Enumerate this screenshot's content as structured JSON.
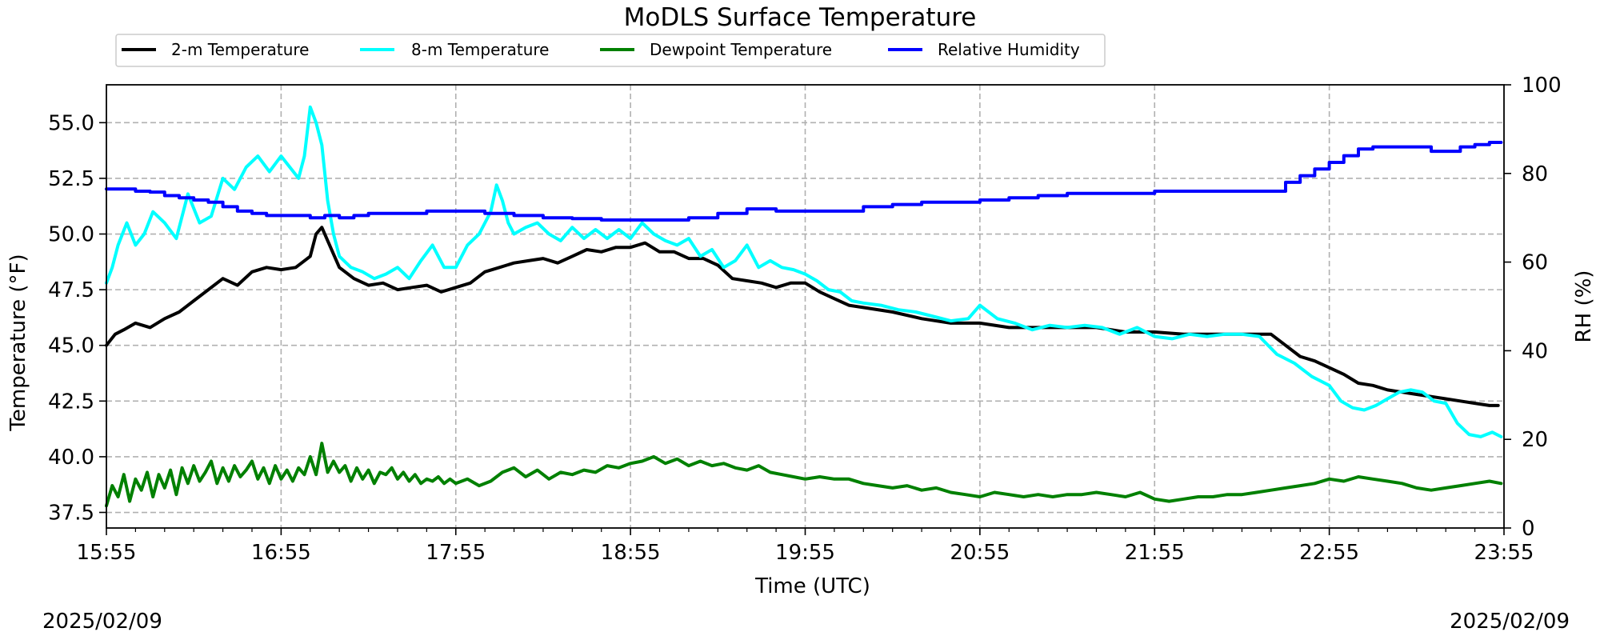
{
  "chart_data": {
    "type": "line",
    "title": "MoDLS Surface Temperature",
    "xlabel": "Time (UTC)",
    "ylabel": "Temperature ($^\\circ$F)",
    "ylabel_display": "Temperature (°F)",
    "y2label": "RH (%)",
    "date_left": "2025/02/09",
    "date_right": "2025/02/09",
    "xlim_minutes": [
      0,
      480
    ],
    "xticks": [
      {
        "m": 0,
        "label": "15:55"
      },
      {
        "m": 60,
        "label": "16:55"
      },
      {
        "m": 120,
        "label": "17:55"
      },
      {
        "m": 180,
        "label": "18:55"
      },
      {
        "m": 240,
        "label": "19:55"
      },
      {
        "m": 300,
        "label": "20:55"
      },
      {
        "m": 360,
        "label": "21:55"
      },
      {
        "m": 420,
        "label": "22:55"
      },
      {
        "m": 480,
        "label": "23:55"
      }
    ],
    "ylim": [
      36.8,
      56.7
    ],
    "yticks": [
      "37.5",
      "40.0",
      "42.5",
      "45.0",
      "47.5",
      "50.0",
      "52.5",
      "55.0"
    ],
    "y2lim": [
      0,
      100
    ],
    "y2ticks": [
      "0",
      "20",
      "40",
      "60",
      "80",
      "100"
    ],
    "grid": true,
    "legend_position": "top-left, above plot",
    "series": [
      {
        "name": "2-m Temperature",
        "color": "#000000",
        "axis": "left",
        "x": [
          0,
          3,
          6,
          10,
          15,
          20,
          25,
          30,
          35,
          40,
          45,
          50,
          55,
          60,
          65,
          70,
          72,
          74,
          76,
          80,
          85,
          90,
          95,
          100,
          105,
          110,
          115,
          120,
          125,
          130,
          135,
          140,
          145,
          150,
          155,
          160,
          165,
          170,
          175,
          180,
          185,
          190,
          195,
          200,
          205,
          210,
          215,
          220,
          225,
          230,
          235,
          240,
          245,
          250,
          255,
          260,
          270,
          280,
          290,
          300,
          310,
          320,
          330,
          340,
          350,
          360,
          370,
          380,
          390,
          400,
          405,
          410,
          415,
          420,
          425,
          430,
          435,
          440,
          445,
          450,
          455,
          460,
          465,
          470,
          475,
          478
        ],
        "y": [
          45.0,
          45.5,
          45.7,
          46.0,
          45.8,
          46.2,
          46.5,
          47.0,
          47.5,
          48.0,
          47.7,
          48.3,
          48.5,
          48.4,
          48.5,
          49.0,
          50.0,
          50.3,
          49.7,
          48.5,
          48.0,
          47.7,
          47.8,
          47.5,
          47.6,
          47.7,
          47.4,
          47.6,
          47.8,
          48.3,
          48.5,
          48.7,
          48.8,
          48.9,
          48.7,
          49.0,
          49.3,
          49.2,
          49.4,
          49.4,
          49.6,
          49.2,
          49.2,
          48.9,
          48.9,
          48.6,
          48.0,
          47.9,
          47.8,
          47.6,
          47.8,
          47.8,
          47.4,
          47.1,
          46.8,
          46.7,
          46.5,
          46.2,
          46.0,
          46.0,
          45.8,
          45.8,
          45.8,
          45.8,
          45.6,
          45.6,
          45.5,
          45.5,
          45.5,
          45.5,
          45.0,
          44.5,
          44.3,
          44.0,
          43.7,
          43.3,
          43.2,
          43.0,
          42.9,
          42.8,
          42.7,
          42.6,
          42.5,
          42.4,
          42.3,
          42.3
        ]
      },
      {
        "name": "8-m Temperature",
        "color": "#00ffff",
        "axis": "left",
        "x": [
          0,
          2,
          4,
          7,
          10,
          13,
          16,
          20,
          24,
          28,
          32,
          36,
          40,
          44,
          48,
          52,
          56,
          60,
          63,
          66,
          68,
          70,
          72,
          74,
          76,
          78,
          80,
          84,
          88,
          92,
          96,
          100,
          104,
          108,
          112,
          116,
          120,
          124,
          128,
          132,
          134,
          136,
          138,
          140,
          144,
          148,
          152,
          156,
          160,
          164,
          168,
          172,
          176,
          180,
          184,
          188,
          192,
          196,
          200,
          204,
          208,
          212,
          216,
          220,
          224,
          228,
          232,
          236,
          240,
          244,
          248,
          252,
          256,
          260,
          266,
          272,
          278,
          284,
          290,
          296,
          300,
          306,
          312,
          318,
          324,
          330,
          336,
          342,
          348,
          354,
          360,
          366,
          372,
          378,
          384,
          390,
          396,
          402,
          408,
          414,
          420,
          424,
          428,
          432,
          436,
          440,
          444,
          448,
          452,
          456,
          460,
          464,
          468,
          472,
          476,
          479
        ],
        "y": [
          47.8,
          48.5,
          49.5,
          50.5,
          49.5,
          50.0,
          51.0,
          50.5,
          49.8,
          51.8,
          50.5,
          50.8,
          52.5,
          52.0,
          53.0,
          53.5,
          52.8,
          53.5,
          53.0,
          52.5,
          53.5,
          55.7,
          55.0,
          54.0,
          51.5,
          50.0,
          49.0,
          48.5,
          48.3,
          48.0,
          48.2,
          48.5,
          48.0,
          48.8,
          49.5,
          48.5,
          48.5,
          49.5,
          50.0,
          51.0,
          52.2,
          51.5,
          50.5,
          50.0,
          50.3,
          50.5,
          50.0,
          49.7,
          50.3,
          49.8,
          50.2,
          49.8,
          50.2,
          49.8,
          50.5,
          50.0,
          49.7,
          49.5,
          49.8,
          49.0,
          49.3,
          48.5,
          48.8,
          49.5,
          48.5,
          48.8,
          48.5,
          48.4,
          48.2,
          47.9,
          47.5,
          47.4,
          47.0,
          46.9,
          46.8,
          46.6,
          46.5,
          46.3,
          46.1,
          46.2,
          46.8,
          46.2,
          46.0,
          45.7,
          45.9,
          45.8,
          45.9,
          45.8,
          45.5,
          45.8,
          45.4,
          45.3,
          45.5,
          45.4,
          45.5,
          45.5,
          45.4,
          44.6,
          44.2,
          43.6,
          43.2,
          42.5,
          42.2,
          42.1,
          42.3,
          42.6,
          42.9,
          43.0,
          42.9,
          42.5,
          42.4,
          41.5,
          41.0,
          40.9,
          41.1,
          40.9
        ]
      },
      {
        "name": "Dewpoint Temperature",
        "color": "#008000",
        "axis": "left",
        "x": [
          0,
          2,
          4,
          6,
          8,
          10,
          12,
          14,
          16,
          18,
          20,
          22,
          24,
          26,
          28,
          30,
          32,
          34,
          36,
          38,
          40,
          42,
          44,
          46,
          48,
          50,
          52,
          54,
          56,
          58,
          60,
          62,
          64,
          66,
          68,
          70,
          72,
          74,
          76,
          78,
          80,
          82,
          84,
          86,
          88,
          90,
          92,
          94,
          96,
          98,
          100,
          102,
          104,
          106,
          108,
          110,
          112,
          114,
          116,
          118,
          120,
          124,
          128,
          132,
          136,
          140,
          144,
          148,
          152,
          156,
          160,
          164,
          168,
          172,
          176,
          180,
          184,
          188,
          192,
          196,
          200,
          204,
          208,
          212,
          216,
          220,
          224,
          228,
          232,
          236,
          240,
          245,
          250,
          255,
          260,
          265,
          270,
          275,
          280,
          285,
          290,
          295,
          300,
          305,
          310,
          315,
          320,
          325,
          330,
          335,
          340,
          345,
          350,
          355,
          360,
          365,
          370,
          375,
          380,
          385,
          390,
          395,
          400,
          405,
          410,
          415,
          420,
          425,
          430,
          435,
          440,
          445,
          450,
          455,
          460,
          465,
          470,
          475,
          479
        ],
        "y": [
          37.8,
          38.7,
          38.2,
          39.2,
          38.0,
          39.0,
          38.5,
          39.3,
          38.2,
          39.2,
          38.6,
          39.4,
          38.3,
          39.5,
          38.8,
          39.6,
          38.9,
          39.3,
          39.8,
          38.8,
          39.5,
          38.9,
          39.6,
          39.1,
          39.4,
          39.8,
          39.0,
          39.5,
          38.8,
          39.6,
          39.0,
          39.4,
          38.9,
          39.5,
          39.2,
          40.0,
          39.2,
          40.6,
          39.3,
          39.8,
          39.3,
          39.6,
          38.9,
          39.5,
          39.0,
          39.4,
          38.8,
          39.3,
          39.2,
          39.5,
          39.0,
          39.3,
          38.9,
          39.2,
          38.8,
          39.0,
          38.9,
          39.1,
          38.8,
          39.0,
          38.8,
          39.0,
          38.7,
          38.9,
          39.3,
          39.5,
          39.1,
          39.4,
          39.0,
          39.3,
          39.2,
          39.4,
          39.3,
          39.6,
          39.5,
          39.7,
          39.8,
          40.0,
          39.7,
          39.9,
          39.6,
          39.8,
          39.6,
          39.7,
          39.5,
          39.4,
          39.6,
          39.3,
          39.2,
          39.1,
          39.0,
          39.1,
          39.0,
          39.0,
          38.8,
          38.7,
          38.6,
          38.7,
          38.5,
          38.6,
          38.4,
          38.3,
          38.2,
          38.4,
          38.3,
          38.2,
          38.3,
          38.2,
          38.3,
          38.3,
          38.4,
          38.3,
          38.2,
          38.4,
          38.1,
          38.0,
          38.1,
          38.2,
          38.2,
          38.3,
          38.3,
          38.4,
          38.5,
          38.6,
          38.7,
          38.8,
          39.0,
          38.9,
          39.1,
          39.0,
          38.9,
          38.8,
          38.6,
          38.5,
          38.6,
          38.7,
          38.8,
          38.9,
          38.8
        ]
      },
      {
        "name": "Relative Humidity",
        "color": "#0000ff",
        "axis": "right",
        "x": [
          0,
          5,
          10,
          15,
          20,
          25,
          30,
          35,
          40,
          45,
          50,
          55,
          60,
          65,
          70,
          75,
          80,
          85,
          90,
          100,
          110,
          120,
          130,
          140,
          150,
          160,
          170,
          180,
          190,
          200,
          210,
          220,
          230,
          240,
          250,
          260,
          270,
          280,
          290,
          300,
          310,
          320,
          330,
          340,
          350,
          360,
          370,
          380,
          390,
          400,
          405,
          410,
          415,
          420,
          425,
          430,
          435,
          440,
          445,
          450,
          455,
          460,
          465,
          470,
          475,
          479
        ],
        "y": [
          76.5,
          76.5,
          76,
          75.8,
          75,
          74.5,
          74,
          73.5,
          72.5,
          71.5,
          71,
          70.5,
          70.5,
          70.5,
          70,
          70.5,
          70,
          70.5,
          71,
          71,
          71.5,
          71.5,
          71,
          70.5,
          70,
          69.8,
          69.5,
          69.5,
          69.5,
          70,
          71,
          72,
          71.5,
          71.5,
          71.5,
          72.5,
          73,
          73.5,
          73.5,
          74,
          74.5,
          75,
          75.5,
          75.5,
          75.5,
          76,
          76,
          76,
          76,
          76,
          78,
          79.5,
          81,
          82.5,
          84,
          85.5,
          86,
          86,
          86,
          86,
          85,
          85,
          86,
          86.5,
          87,
          87
        ]
      }
    ]
  }
}
